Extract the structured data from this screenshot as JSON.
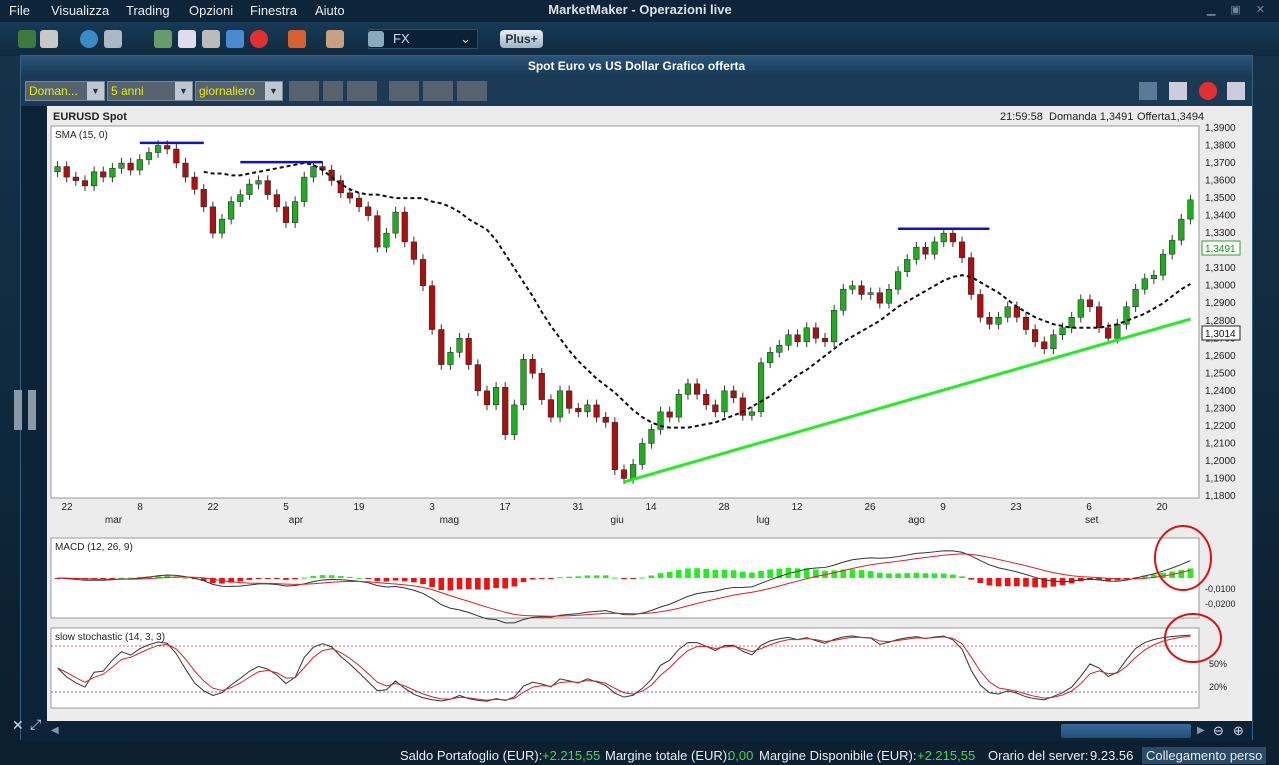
{
  "menu": [
    "File",
    "Visualizza",
    "Trading",
    "Opzioni",
    "Finestra",
    "Aiuto"
  ],
  "app_title": "MarketMaker - Operazioni live",
  "toolbar": {
    "market_select": "FX",
    "plus_label": "Plus+"
  },
  "window": {
    "title": "Spot Euro vs US Dollar Grafico offerta"
  },
  "controls": {
    "price_type": "Doman...",
    "period": "5 anni",
    "interval": "giornaliero"
  },
  "chart_header": {
    "symbol": "EURUSD Spot",
    "time": "21:59:58",
    "bid": "Domanda 1,3491",
    "ask": "Offerta1,3494"
  },
  "indicators": {
    "sma": "SMA (15, 0)",
    "macd": "MACD (12, 26, 9)",
    "stoch": "slow stochastic (14, 3, 3)"
  },
  "colors": {
    "up": "#22aa22",
    "down": "#aa1111",
    "trend": "#22ee22",
    "resistance": "#1111cc",
    "macd_pos": "#22ee22",
    "macd_neg": "#ee1111"
  },
  "chart_data": {
    "type": "candlestick",
    "x_ticks": [
      "22",
      "8",
      "22",
      "5",
      "19",
      "3",
      "17",
      "31",
      "14",
      "28",
      "12",
      "26",
      "9",
      "23",
      "6",
      "20"
    ],
    "month_labels": [
      "mar",
      "apr",
      "mag",
      "giu",
      "lug",
      "ago",
      "set"
    ],
    "y_ticks": [
      "1,3900",
      "1,3800",
      "1,3700",
      "1,3600",
      "1,3500",
      "1,3400",
      "1,3300",
      "1,3200",
      "1,3100",
      "1,3000",
      "1,2900",
      "1,2800",
      "1,2700",
      "1,2600",
      "1,2500",
      "1,2400",
      "1,2300",
      "1,2200",
      "1,2100",
      "1,2000",
      "1,1900",
      "1,1800"
    ],
    "ylim": [
      1.18,
      1.39
    ],
    "last_price": "1,3491",
    "sma_value": "1,3014",
    "close": [
      1.368,
      1.362,
      1.36,
      1.357,
      1.365,
      1.362,
      1.367,
      1.37,
      1.366,
      1.372,
      1.376,
      1.38,
      1.378,
      1.37,
      1.362,
      1.355,
      1.345,
      1.33,
      1.338,
      1.348,
      1.352,
      1.358,
      1.36,
      1.352,
      1.345,
      1.336,
      1.348,
      1.362,
      1.368,
      1.366,
      1.36,
      1.353,
      1.35,
      1.345,
      1.34,
      1.322,
      1.33,
      1.342,
      1.325,
      1.315,
      1.3,
      1.275,
      1.255,
      1.262,
      1.27,
      1.255,
      1.24,
      1.232,
      1.242,
      1.215,
      1.232,
      1.258,
      1.25,
      1.235,
      1.225,
      1.24,
      1.23,
      1.228,
      1.232,
      1.225,
      1.222,
      1.195,
      1.19,
      1.198,
      1.21,
      1.218,
      1.228,
      1.225,
      1.238,
      1.244,
      1.238,
      1.232,
      1.228,
      1.24,
      1.236,
      1.226,
      1.228,
      1.256,
      1.262,
      1.266,
      1.272,
      1.268,
      1.276,
      1.27,
      1.268,
      1.286,
      1.298,
      1.3,
      1.295,
      1.296,
      1.29,
      1.298,
      1.308,
      1.315,
      1.322,
      1.318,
      1.325,
      1.33,
      1.325,
      1.316,
      1.295,
      1.282,
      1.278,
      1.282,
      1.288,
      1.282,
      1.275,
      1.268,
      1.264,
      1.272,
      1.276,
      1.282,
      1.292,
      1.288,
      1.276,
      1.27,
      1.278,
      1.288,
      1.298,
      1.304,
      1.306,
      1.318,
      1.326,
      1.338,
      1.349
    ],
    "sma": [
      1.365,
      1.364,
      1.364,
      1.363,
      1.363,
      1.364,
      1.365,
      1.366,
      1.367,
      1.368,
      1.369,
      1.37,
      1.369,
      1.366,
      1.362,
      1.358,
      1.355,
      1.353,
      1.352,
      1.352,
      1.351,
      1.35,
      1.35,
      1.35,
      1.35,
      1.348,
      1.347,
      1.345,
      1.342,
      1.338,
      1.335,
      1.332,
      1.326,
      1.318,
      1.31,
      1.302,
      1.294,
      1.285,
      1.277,
      1.27,
      1.263,
      1.257,
      1.252,
      1.247,
      1.243,
      1.239,
      1.234,
      1.229,
      1.225,
      1.222,
      1.22,
      1.219,
      1.219,
      1.219,
      1.22,
      1.221,
      1.222,
      1.224,
      1.226,
      1.228,
      1.231,
      1.234,
      1.237,
      1.241,
      1.245,
      1.249,
      1.252,
      1.256,
      1.26,
      1.264,
      1.268,
      1.271,
      1.274,
      1.277,
      1.28,
      1.284,
      1.288,
      1.291,
      1.294,
      1.297,
      1.3,
      1.303,
      1.305,
      1.306,
      1.305,
      1.302,
      1.299,
      1.296,
      1.292,
      1.288,
      1.285,
      1.282,
      1.28,
      1.278,
      1.277,
      1.276,
      1.276,
      1.276,
      1.276,
      1.277,
      1.278,
      1.28,
      1.282,
      1.284,
      1.287,
      1.29,
      1.294,
      1.298,
      1.301
    ]
  },
  "status": {
    "portfolio_label": "Saldo Portafoglio (EUR):",
    "portfolio_value": "+2.215,55",
    "margin_label": "Margine totale (EUR):",
    "margin_value": "0,00",
    "avail_label": "Margine Disponibile (EUR):",
    "avail_value": "+2.215,55",
    "server_label": "Orario del server:",
    "server_time": "9.23.56",
    "conn": "Collegamento perso"
  }
}
